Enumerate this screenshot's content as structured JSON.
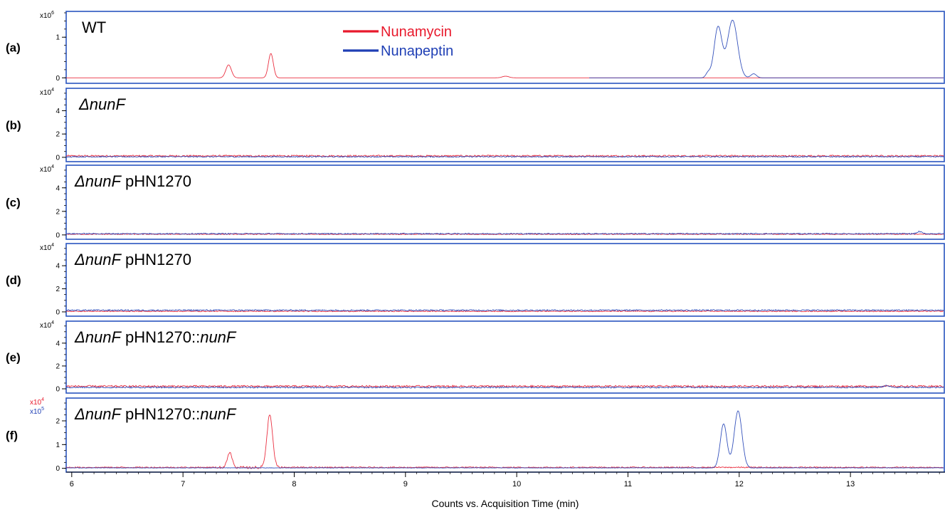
{
  "chart_data": {
    "type": "line",
    "xlabel": "Counts vs. Acquisition Time (min)",
    "xlim": [
      5.95,
      13.85
    ],
    "xticks": [
      6,
      7,
      8,
      9,
      10,
      11,
      12,
      13
    ],
    "legend": {
      "placement": "top-center of panel (a)",
      "entries": [
        {
          "name": "Nunamycin",
          "color": "#e8192c"
        },
        {
          "name": "Nunapeptin",
          "color": "#1f3fb5"
        }
      ]
    },
    "panels": [
      {
        "id": "a",
        "letter": "(a)",
        "label": [
          {
            "text": "WT",
            "italic": false
          }
        ],
        "multiplier": [
          {
            "base": "x10",
            "exp": "6",
            "color": "#000000"
          }
        ],
        "ylim": [
          -0.1,
          1.6
        ],
        "yticks": [
          0,
          1
        ],
        "series": [
          {
            "name": "Nunamycin",
            "color": "#e8192c",
            "baseline": 0,
            "peaks": [
              {
                "x": 7.41,
                "h": 0.32,
                "w": 0.025
              },
              {
                "x": 7.79,
                "h": 0.6,
                "w": 0.022
              },
              {
                "x": 9.9,
                "h": 0.04,
                "w": 0.03
              }
            ]
          },
          {
            "name": "Nunapeptin",
            "color": "#1f3fb5",
            "baseline": 0,
            "start": 10.65,
            "peaks": [
              {
                "x": 11.72,
                "h": 0.12,
                "w": 0.02
              },
              {
                "x": 11.81,
                "h": 1.25,
                "w": 0.035
              },
              {
                "x": 11.94,
                "h": 1.42,
                "w": 0.045
              },
              {
                "x": 12.13,
                "h": 0.1,
                "w": 0.025
              }
            ]
          }
        ]
      },
      {
        "id": "b",
        "letter": "(b)",
        "label": [
          {
            "text": "ΔnunF",
            "italic": true
          }
        ],
        "multiplier": [
          {
            "base": "x10",
            "exp": "4",
            "color": "#000000"
          }
        ],
        "ylim": [
          -0.25,
          5.8
        ],
        "yticks": [
          0,
          2,
          4
        ],
        "series": [
          {
            "name": "Nunamycin",
            "color": "#e8192c",
            "baseline": 0.12,
            "noise": 0.07,
            "peaks": []
          },
          {
            "name": "Nunapeptin",
            "color": "#1f3fb5",
            "baseline": 0.05,
            "noise": 0.05,
            "peaks": []
          }
        ]
      },
      {
        "id": "c",
        "letter": "(c)",
        "label": [
          {
            "text": "ΔnunF",
            "italic": true
          },
          {
            "text": " pHN1270",
            "italic": false
          }
        ],
        "multiplier": [
          {
            "base": "x10",
            "exp": "4",
            "color": "#000000"
          }
        ],
        "ylim": [
          -0.25,
          5.8
        ],
        "yticks": [
          0,
          2,
          4
        ],
        "series": [
          {
            "name": "Nunamycin",
            "color": "#e8192c",
            "baseline": 0.06,
            "noise": 0.04,
            "peaks": []
          },
          {
            "name": "Nunapeptin",
            "color": "#1f3fb5",
            "baseline": 0.1,
            "noise": 0.05,
            "peaks": [
              {
                "x": 13.62,
                "h": 0.18,
                "w": 0.02
              }
            ]
          }
        ]
      },
      {
        "id": "d",
        "letter": "(d)",
        "label": [
          {
            "text": "ΔnunF",
            "italic": true
          },
          {
            "text": " pHN1270",
            "italic": false
          }
        ],
        "multiplier": [
          {
            "base": "x10",
            "exp": "4",
            "color": "#000000"
          }
        ],
        "ylim": [
          -0.25,
          5.8
        ],
        "yticks": [
          0,
          2,
          4
        ],
        "series": [
          {
            "name": "Nunamycin",
            "color": "#e8192c",
            "baseline": 0.05,
            "noise": 0.04,
            "peaks": []
          },
          {
            "name": "Nunapeptin",
            "color": "#1f3fb5",
            "baseline": 0.14,
            "noise": 0.06,
            "peaks": []
          }
        ]
      },
      {
        "id": "e",
        "letter": "(e)",
        "label": [
          {
            "text": "ΔnunF",
            "italic": true
          },
          {
            "text": " pHN1270::",
            "italic": false
          },
          {
            "text": "nunF",
            "italic": true
          }
        ],
        "multiplier": [
          {
            "base": "x10",
            "exp": "4",
            "color": "#000000"
          }
        ],
        "ylim": [
          -0.25,
          5.8
        ],
        "yticks": [
          0,
          2,
          4
        ],
        "series": [
          {
            "name": "Nunamycin",
            "color": "#e8192c",
            "baseline": 0.22,
            "noise": 0.08,
            "peaks": []
          },
          {
            "name": "Nunapeptin",
            "color": "#1f3fb5",
            "baseline": 0.12,
            "noise": 0.06,
            "peaks": [
              {
                "x": 13.32,
                "h": 0.15,
                "w": 0.03
              }
            ]
          }
        ]
      },
      {
        "id": "f",
        "letter": "(f)",
        "label": [
          {
            "text": "ΔnunF",
            "italic": true
          },
          {
            "text": " pHN1270::",
            "italic": false
          },
          {
            "text": "nunF",
            "italic": true
          }
        ],
        "multiplier": [
          {
            "base": "x10",
            "exp": "4",
            "color": "#e8192c"
          },
          {
            "base": "x10",
            "exp": "5",
            "color": "#1f3fb5"
          }
        ],
        "ylim": [
          -0.1,
          2.9
        ],
        "yticks": [
          0,
          1,
          2
        ],
        "series": [
          {
            "name": "Nunamycin",
            "color": "#e8192c",
            "baseline": 0.04,
            "noise": 0.025,
            "peaks": [
              {
                "x": 7.42,
                "h": 0.6,
                "w": 0.022
              },
              {
                "x": 7.78,
                "h": 2.25,
                "w": 0.025
              }
            ]
          },
          {
            "name": "Nunapeptin",
            "color": "#1f3fb5",
            "baseline": 0.02,
            "noise": 0.01,
            "peaks": [
              {
                "x": 11.86,
                "h": 1.85,
                "w": 0.03
              },
              {
                "x": 11.99,
                "h": 2.4,
                "w": 0.035
              }
            ]
          }
        ]
      }
    ]
  }
}
